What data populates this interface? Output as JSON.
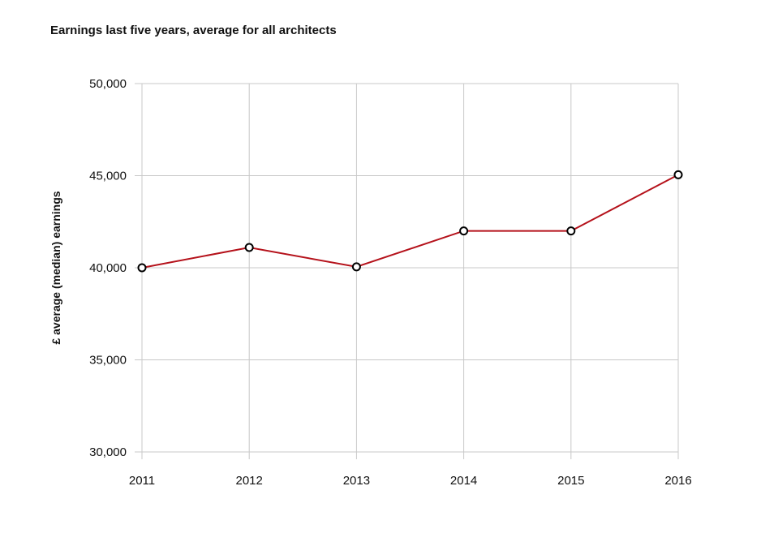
{
  "chart_data": {
    "type": "line",
    "title": "Earnings last five years, average for all architects",
    "xlabel": "",
    "ylabel": "£ average (median) earnings",
    "categories": [
      "2011",
      "2012",
      "2013",
      "2014",
      "2015",
      "2016"
    ],
    "series": [
      {
        "values": [
          40000,
          41100,
          40050,
          42000,
          42000,
          45050
        ]
      }
    ],
    "ylim": [
      30000,
      50000
    ],
    "yticks": [
      30000,
      35000,
      40000,
      45000,
      50000
    ],
    "ytick_labels": [
      "30,000",
      "35,000",
      "40,000",
      "45,000",
      "50,000"
    ],
    "grid": true,
    "line_color": "#b5121b",
    "marker_fill": "#ffffff",
    "marker_stroke": "#000000"
  }
}
